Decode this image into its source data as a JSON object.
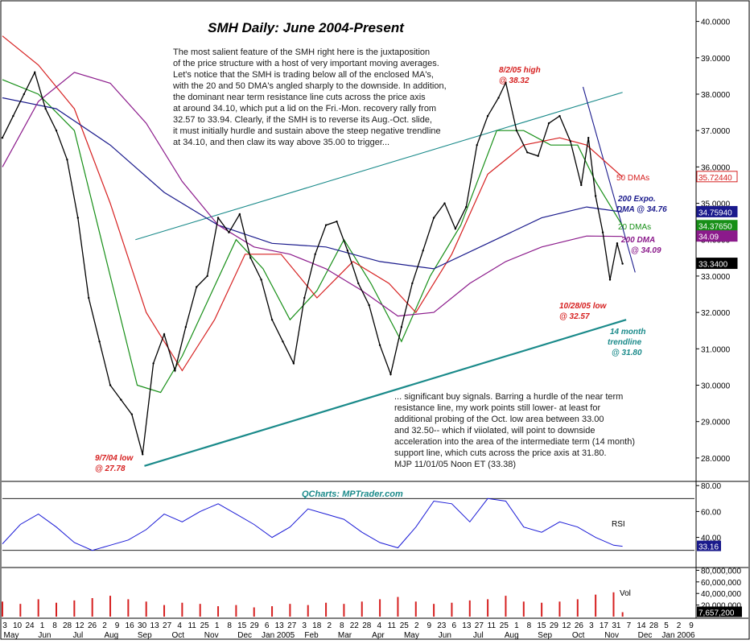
{
  "chart_data": {
    "type": "line",
    "title": "SMH Daily: June 2004-Present",
    "commentary_top": [
      "The most salient feature of the SMH right here is the juxtaposition",
      "of the price structure with a host of very important moving averages.",
      "Let's notice that the SMH is trading below all of the enclosed MA's,",
      "with the 20 and 50 DMA's angled sharply to the downside. In addition,",
      "the dominant near term resistance line cuts across the price axis",
      "at around 34.10, which put a lid on the Fri.-Mon. recovery rally from",
      "32.57 to 33.94. Clearly, if the SMH is to reverse its Aug.-Oct. slide,",
      "it must initially hurdle and sustain above the steep negative trendline",
      "at 34.10, and then claw its way above 35.00 to trigger..."
    ],
    "commentary_bottom": [
      "... significant buy signals. Barring a hurdle of the near term",
      "resistance line, my work points still lower- at least for",
      "additional probing of the Oct. low area between 33.00",
      "and 32.50-- which if viiolated, will point to downside",
      "acceleration into the area of the intermediate term (14 month)",
      "support line, which cuts across the price axis at 31.80.",
      "MJP  11/01/05 Noon ET  (33.38)"
    ],
    "annotations": {
      "high": [
        "8/2/05 high",
        "@ 38.32"
      ],
      "low_2004": [
        "9/7/04 low",
        "@ 27.78"
      ],
      "low_oct": [
        "10/28/05 low",
        "@ 32.57"
      ],
      "trendline": [
        "14 month",
        "trendline",
        "@ 31.80"
      ],
      "dma50": "50 DMAs",
      "ema200": [
        "200 Expo.",
        "DMA @ 34.76"
      ],
      "dma20": "20 DMAs",
      "dma200": [
        "200 DMA",
        "@ 34.09"
      ]
    },
    "watermark": "QCharts: MPTrader.com",
    "price_axis": {
      "ylim": [
        27.4,
        40.5
      ],
      "ticks": [
        "40.0000",
        "39.0000",
        "38.0000",
        "37.0000",
        "36.0000",
        "35.0000",
        "34.0000",
        "33.0000",
        "32.0000",
        "31.0000",
        "30.0000",
        "29.0000",
        "28.0000"
      ],
      "tick_values": [
        40,
        39,
        38,
        37,
        36,
        35,
        34,
        33,
        32,
        31,
        30,
        29,
        28
      ]
    },
    "value_boxes": [
      {
        "label": "35.72440",
        "value": 35.7244,
        "color": "#d62020",
        "text_color": "#d62020",
        "bg": "#ffffff"
      },
      {
        "label": "34.75940",
        "value": 34.7594,
        "color": "#1a1a8c",
        "text_color": "#ffffff",
        "bg": "#1a1a8c"
      },
      {
        "label": "34.37650",
        "value": 34.3765,
        "color": "#178f17",
        "text_color": "#ffffff",
        "bg": "#178f17"
      },
      {
        "label": "34.09",
        "value": 34.09,
        "color": "#8b1a8b",
        "text_color": "#ffffff",
        "bg": "#8b1a8b"
      },
      {
        "label": "33.3400",
        "value": 33.34,
        "color": "#000000",
        "text_color": "#ffffff",
        "bg": "#000000"
      }
    ],
    "rsi_panel": {
      "label": "RSI",
      "ticks": [
        "80.00",
        "60.00",
        "40.00"
      ],
      "tick_values": [
        80,
        60,
        40
      ],
      "ylim": [
        18,
        82
      ],
      "current": "33.16",
      "current_value": 33.16,
      "guides": [
        70,
        30
      ]
    },
    "volume_panel": {
      "label": "Vol",
      "ticks": [
        "80,000,000",
        "60,000,000",
        "40,000,000",
        "20,000,000"
      ],
      "tick_values": [
        80000000,
        60000000,
        40000000,
        20000000
      ],
      "ylim": [
        0,
        82000000
      ],
      "current": "7,657,200",
      "current_value": 7657200
    },
    "x_axis": {
      "day_labels": [
        "3",
        "10",
        "24",
        "1",
        "8",
        "28",
        "12",
        "26",
        "2",
        "9",
        "16",
        "30",
        "13",
        "27",
        "4",
        "11",
        "25",
        "1",
        "8",
        "15",
        "29",
        "6",
        "13",
        "27",
        "3",
        "18",
        "2",
        "8",
        "22",
        "28",
        "4",
        "11",
        "25",
        "2",
        "9",
        "23",
        "6",
        "13",
        "27",
        "11",
        "25",
        "1",
        "8",
        "15",
        "29",
        "12",
        "26",
        "3",
        "17",
        "31",
        "7",
        "14",
        "28",
        "5",
        "2",
        "9"
      ],
      "month_labels": [
        "May",
        "Jun",
        "Jul",
        "Aug",
        "Sep",
        "Oct",
        "Nov",
        "Dec",
        "Jan 2005",
        "Feb",
        "Mar",
        "Apr",
        "May",
        "Jun",
        "Jul",
        "Aug",
        "Sep",
        "Oct",
        "Nov",
        "Dec",
        "Jan 2006"
      ],
      "xlim": [
        0,
        385
      ]
    },
    "price_points": [
      {
        "x": 0,
        "y": 36.8
      },
      {
        "x": 6,
        "y": 37.4
      },
      {
        "x": 12,
        "y": 38.0
      },
      {
        "x": 18,
        "y": 38.6
      },
      {
        "x": 24,
        "y": 37.6
      },
      {
        "x": 30,
        "y": 37.0
      },
      {
        "x": 36,
        "y": 36.2
      },
      {
        "x": 42,
        "y": 34.6
      },
      {
        "x": 48,
        "y": 32.4
      },
      {
        "x": 54,
        "y": 31.2
      },
      {
        "x": 60,
        "y": 30.0
      },
      {
        "x": 66,
        "y": 29.6
      },
      {
        "x": 72,
        "y": 29.2
      },
      {
        "x": 78,
        "y": 28.1
      },
      {
        "x": 84,
        "y": 30.6
      },
      {
        "x": 90,
        "y": 31.4
      },
      {
        "x": 96,
        "y": 30.4
      },
      {
        "x": 102,
        "y": 31.6
      },
      {
        "x": 108,
        "y": 32.7
      },
      {
        "x": 114,
        "y": 33.0
      },
      {
        "x": 120,
        "y": 34.6
      },
      {
        "x": 126,
        "y": 34.2
      },
      {
        "x": 132,
        "y": 34.7
      },
      {
        "x": 138,
        "y": 33.5
      },
      {
        "x": 144,
        "y": 32.9
      },
      {
        "x": 150,
        "y": 31.8
      },
      {
        "x": 156,
        "y": 31.2
      },
      {
        "x": 162,
        "y": 30.6
      },
      {
        "x": 168,
        "y": 32.4
      },
      {
        "x": 174,
        "y": 33.6
      },
      {
        "x": 180,
        "y": 34.4
      },
      {
        "x": 186,
        "y": 34.5
      },
      {
        "x": 192,
        "y": 33.7
      },
      {
        "x": 198,
        "y": 32.8
      },
      {
        "x": 204,
        "y": 32.2
      },
      {
        "x": 210,
        "y": 31.1
      },
      {
        "x": 216,
        "y": 30.3
      },
      {
        "x": 222,
        "y": 31.6
      },
      {
        "x": 228,
        "y": 32.8
      },
      {
        "x": 234,
        "y": 33.7
      },
      {
        "x": 240,
        "y": 34.6
      },
      {
        "x": 246,
        "y": 35.0
      },
      {
        "x": 252,
        "y": 34.3
      },
      {
        "x": 258,
        "y": 34.9
      },
      {
        "x": 264,
        "y": 36.6
      },
      {
        "x": 270,
        "y": 37.4
      },
      {
        "x": 276,
        "y": 37.9
      },
      {
        "x": 280,
        "y": 38.32
      },
      {
        "x": 286,
        "y": 37.0
      },
      {
        "x": 292,
        "y": 36.4
      },
      {
        "x": 298,
        "y": 36.3
      },
      {
        "x": 304,
        "y": 37.2
      },
      {
        "x": 310,
        "y": 37.4
      },
      {
        "x": 316,
        "y": 36.7
      },
      {
        "x": 322,
        "y": 35.5
      },
      {
        "x": 326,
        "y": 36.8
      },
      {
        "x": 330,
        "y": 35.2
      },
      {
        "x": 334,
        "y": 34.2
      },
      {
        "x": 338,
        "y": 32.9
      },
      {
        "x": 342,
        "y": 33.9
      },
      {
        "x": 345,
        "y": 33.34
      }
    ],
    "ma_lines": [
      {
        "name": "20 DMAs",
        "color": "#178f17",
        "points": [
          [
            0,
            38.4
          ],
          [
            20,
            38.0
          ],
          [
            40,
            37.0
          ],
          [
            60,
            33.0
          ],
          [
            75,
            30.0
          ],
          [
            88,
            29.8
          ],
          [
            100,
            30.8
          ],
          [
            115,
            32.4
          ],
          [
            130,
            34.0
          ],
          [
            145,
            33.2
          ],
          [
            160,
            31.8
          ],
          [
            175,
            32.6
          ],
          [
            190,
            34.0
          ],
          [
            205,
            32.8
          ],
          [
            222,
            31.2
          ],
          [
            238,
            33.0
          ],
          [
            255,
            34.4
          ],
          [
            275,
            37.0
          ],
          [
            290,
            37.0
          ],
          [
            305,
            36.6
          ],
          [
            320,
            36.6
          ],
          [
            330,
            35.6
          ],
          [
            345,
            34.38
          ]
        ]
      },
      {
        "name": "50 DMAs",
        "color": "#d62020",
        "points": [
          [
            0,
            39.6
          ],
          [
            20,
            38.8
          ],
          [
            40,
            37.6
          ],
          [
            60,
            35.0
          ],
          [
            80,
            32.0
          ],
          [
            100,
            30.4
          ],
          [
            118,
            31.8
          ],
          [
            135,
            33.6
          ],
          [
            155,
            33.6
          ],
          [
            175,
            32.4
          ],
          [
            195,
            33.4
          ],
          [
            215,
            32.8
          ],
          [
            230,
            32.0
          ],
          [
            250,
            33.6
          ],
          [
            270,
            35.8
          ],
          [
            290,
            36.6
          ],
          [
            310,
            36.8
          ],
          [
            325,
            36.6
          ],
          [
            345,
            35.72
          ]
        ]
      },
      {
        "name": "200 Expo. DMA",
        "color": "#1a1a8c",
        "points": [
          [
            0,
            37.9
          ],
          [
            30,
            37.6
          ],
          [
            60,
            36.6
          ],
          [
            90,
            35.3
          ],
          [
            120,
            34.4
          ],
          [
            150,
            33.9
          ],
          [
            180,
            33.8
          ],
          [
            210,
            33.4
          ],
          [
            240,
            33.2
          ],
          [
            270,
            33.9
          ],
          [
            300,
            34.6
          ],
          [
            325,
            34.9
          ],
          [
            345,
            34.76
          ]
        ]
      },
      {
        "name": "200 DMA",
        "color": "#8b1a8b",
        "points": [
          [
            0,
            36.0
          ],
          [
            20,
            37.8
          ],
          [
            40,
            38.6
          ],
          [
            60,
            38.3
          ],
          [
            80,
            37.2
          ],
          [
            100,
            35.6
          ],
          [
            120,
            34.4
          ],
          [
            140,
            33.8
          ],
          [
            160,
            33.6
          ],
          [
            180,
            33.2
          ],
          [
            200,
            32.6
          ],
          [
            220,
            31.9
          ],
          [
            240,
            32.0
          ],
          [
            260,
            32.8
          ],
          [
            280,
            33.4
          ],
          [
            300,
            33.8
          ],
          [
            325,
            34.1
          ],
          [
            345,
            34.09
          ]
        ]
      }
    ],
    "trendlines": [
      {
        "name": "14 month trendline",
        "color": "#1a8a8a",
        "points": [
          [
            79,
            27.78
          ],
          [
            347,
            31.8
          ]
        ]
      },
      {
        "name": "upper channel",
        "color": "#1a8a8a",
        "points": [
          [
            74,
            34.0
          ],
          [
            345,
            38.05
          ]
        ]
      },
      {
        "name": "near term resistance",
        "color": "#1a1a8c",
        "points": [
          [
            323,
            38.2
          ],
          [
            352,
            33.1
          ]
        ]
      }
    ],
    "rsi_points": [
      {
        "x": 0,
        "y": 35
      },
      {
        "x": 10,
        "y": 50
      },
      {
        "x": 20,
        "y": 58
      },
      {
        "x": 30,
        "y": 48
      },
      {
        "x": 40,
        "y": 36
      },
      {
        "x": 50,
        "y": 30
      },
      {
        "x": 60,
        "y": 34
      },
      {
        "x": 70,
        "y": 38
      },
      {
        "x": 80,
        "y": 46
      },
      {
        "x": 90,
        "y": 58
      },
      {
        "x": 100,
        "y": 52
      },
      {
        "x": 110,
        "y": 60
      },
      {
        "x": 120,
        "y": 66
      },
      {
        "x": 130,
        "y": 58
      },
      {
        "x": 140,
        "y": 50
      },
      {
        "x": 150,
        "y": 40
      },
      {
        "x": 160,
        "y": 48
      },
      {
        "x": 170,
        "y": 62
      },
      {
        "x": 180,
        "y": 58
      },
      {
        "x": 190,
        "y": 54
      },
      {
        "x": 200,
        "y": 44
      },
      {
        "x": 210,
        "y": 36
      },
      {
        "x": 220,
        "y": 32
      },
      {
        "x": 230,
        "y": 48
      },
      {
        "x": 240,
        "y": 68
      },
      {
        "x": 250,
        "y": 66
      },
      {
        "x": 260,
        "y": 52
      },
      {
        "x": 270,
        "y": 70
      },
      {
        "x": 280,
        "y": 68
      },
      {
        "x": 290,
        "y": 48
      },
      {
        "x": 300,
        "y": 44
      },
      {
        "x": 310,
        "y": 52
      },
      {
        "x": 320,
        "y": 48
      },
      {
        "x": 330,
        "y": 40
      },
      {
        "x": 340,
        "y": 34
      },
      {
        "x": 345,
        "y": 33.16
      }
    ],
    "volume_bars": [
      {
        "x": 0,
        "v": 26000000
      },
      {
        "x": 10,
        "v": 22000000
      },
      {
        "x": 20,
        "v": 30000000
      },
      {
        "x": 30,
        "v": 24000000
      },
      {
        "x": 40,
        "v": 28000000
      },
      {
        "x": 50,
        "v": 32000000
      },
      {
        "x": 60,
        "v": 36000000
      },
      {
        "x": 70,
        "v": 30000000
      },
      {
        "x": 80,
        "v": 26000000
      },
      {
        "x": 90,
        "v": 20000000
      },
      {
        "x": 100,
        "v": 24000000
      },
      {
        "x": 110,
        "v": 22000000
      },
      {
        "x": 120,
        "v": 18000000
      },
      {
        "x": 130,
        "v": 20000000
      },
      {
        "x": 140,
        "v": 16000000
      },
      {
        "x": 150,
        "v": 18000000
      },
      {
        "x": 160,
        "v": 22000000
      },
      {
        "x": 170,
        "v": 20000000
      },
      {
        "x": 180,
        "v": 24000000
      },
      {
        "x": 190,
        "v": 22000000
      },
      {
        "x": 200,
        "v": 26000000
      },
      {
        "x": 210,
        "v": 30000000
      },
      {
        "x": 220,
        "v": 34000000
      },
      {
        "x": 230,
        "v": 26000000
      },
      {
        "x": 240,
        "v": 22000000
      },
      {
        "x": 250,
        "v": 24000000
      },
      {
        "x": 260,
        "v": 28000000
      },
      {
        "x": 270,
        "v": 30000000
      },
      {
        "x": 280,
        "v": 36000000
      },
      {
        "x": 290,
        "v": 26000000
      },
      {
        "x": 300,
        "v": 24000000
      },
      {
        "x": 310,
        "v": 26000000
      },
      {
        "x": 320,
        "v": 30000000
      },
      {
        "x": 330,
        "v": 38000000
      },
      {
        "x": 340,
        "v": 42000000
      },
      {
        "x": 345,
        "v": 7657200
      }
    ]
  }
}
